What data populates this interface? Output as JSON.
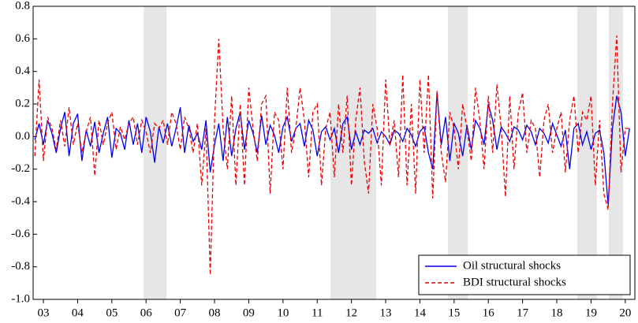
{
  "chart_data": {
    "type": "line",
    "x": [
      2003.25,
      2003.375,
      2003.5,
      2003.625,
      2003.75,
      2003.875,
      2004,
      2004.125,
      2004.25,
      2004.375,
      2004.5,
      2004.625,
      2004.75,
      2004.875,
      2005,
      2005.125,
      2005.25,
      2005.375,
      2005.5,
      2005.625,
      2005.75,
      2005.875,
      2006,
      2006.125,
      2006.25,
      2006.375,
      2006.5,
      2006.625,
      2006.75,
      2006.875,
      2007,
      2007.125,
      2007.25,
      2007.375,
      2007.5,
      2007.625,
      2007.75,
      2007.875,
      2008,
      2008.125,
      2008.25,
      2008.375,
      2008.5,
      2008.625,
      2008.75,
      2008.875,
      2009,
      2009.125,
      2009.25,
      2009.375,
      2009.5,
      2009.625,
      2009.75,
      2009.875,
      2010,
      2010.125,
      2010.25,
      2010.375,
      2010.5,
      2010.625,
      2010.75,
      2010.875,
      2011,
      2011.125,
      2011.25,
      2011.375,
      2011.5,
      2011.625,
      2011.75,
      2011.875,
      2012,
      2012.125,
      2012.25,
      2012.375,
      2012.5,
      2012.625,
      2012.75,
      2012.875,
      2013,
      2013.125,
      2013.25,
      2013.375,
      2013.5,
      2013.625,
      2013.75,
      2013.875,
      2014,
      2014.125,
      2014.25,
      2014.375,
      2014.5,
      2014.625,
      2014.75,
      2014.875,
      2015,
      2015.125,
      2015.25,
      2015.375,
      2015.5,
      2015.625,
      2015.75,
      2015.875,
      2016,
      2016.125,
      2016.25,
      2016.375,
      2016.5,
      2016.625,
      2016.75,
      2016.875,
      2017,
      2017.125,
      2017.25,
      2017.375,
      2017.5,
      2017.625,
      2017.75,
      2017.875,
      2018,
      2018.125,
      2018.25,
      2018.375,
      2018.5,
      2018.625,
      2018.75,
      2018.875,
      2019,
      2019.125,
      2019.25,
      2019.375,
      2019.5,
      2019.625,
      2019.75,
      2019.875,
      2020,
      2020.125,
      2020.25,
      2020.375,
      2020.5,
      2020.625
    ],
    "series": [
      {
        "name": "Oil structural shocks",
        "color": "#0000ee",
        "dash": false,
        "values": [
          -0.02,
          0.08,
          -0.05,
          0.1,
          0.02,
          -0.1,
          0.05,
          0.15,
          -0.12,
          0.08,
          0.14,
          -0.15,
          0.04,
          -0.06,
          0.09,
          -0.1,
          0.02,
          0.12,
          -0.13,
          0.05,
          0.02,
          -0.08,
          0.1,
          -0.05,
          0.08,
          -0.1,
          0.12,
          0.03,
          -0.16,
          0.06,
          -0.04,
          0.08,
          -0.06,
          0.05,
          0.18,
          -0.1,
          0.07,
          -0.03,
          0.02,
          -0.08,
          0.1,
          -0.22,
          -0.05,
          0.08,
          -0.15,
          0.12,
          -0.12,
          0.05,
          0.15,
          -0.08,
          0.1,
          0.02,
          -0.1,
          0.13,
          -0.05,
          0.07,
          0.01,
          -0.1,
          0.06,
          0.12,
          -0.03,
          0.05,
          0.08,
          -0.06,
          0.1,
          0.04,
          -0.12,
          0.03,
          0.06,
          -0.02,
          0.05,
          -0.1,
          0.08,
          0.12,
          -0.08,
          0.03,
          -0.05,
          0.04,
          0.02,
          0.05,
          -0.04,
          0.03,
          0.0,
          -0.05,
          0.04,
          0.02,
          -0.03,
          0.05,
          0.01,
          -0.06,
          0.03,
          0.06,
          -0.1,
          -0.2,
          0.27,
          -0.05,
          0.12,
          -0.15,
          0.08,
          0.02,
          -0.12,
          0.07,
          -0.08,
          0.1,
          0.05,
          -0.05,
          0.2,
          0.1,
          -0.08,
          0.06,
          0.02,
          -0.03,
          0.06,
          0.04,
          -0.02,
          0.07,
          0.03,
          -0.05,
          0.05,
          0.02,
          -0.04,
          0.08,
          0.01,
          -0.06,
          0.04,
          -0.2,
          0.05,
          0.08,
          -0.05,
          0.03,
          -0.08,
          0.02,
          0.04,
          -0.1,
          -0.42,
          0.05,
          0.25,
          0.15,
          -0.12,
          0.05
        ]
      },
      {
        "name": "BDI structural shocks",
        "color": "#ee0000",
        "dash": true,
        "values": [
          -0.12,
          0.35,
          -0.15,
          0.12,
          0.05,
          -0.08,
          0.1,
          -0.06,
          0.18,
          -0.05,
          0.08,
          -0.1,
          0.03,
          0.12,
          -0.24,
          0.1,
          -0.05,
          0.08,
          0.15,
          -0.08,
          0.06,
          -0.02,
          0.08,
          0.12,
          -0.05,
          0.1,
          0.03,
          -0.1,
          0.08,
          0.05,
          0.1,
          -0.05,
          0.15,
          0.08,
          -0.08,
          0.12,
          0.05,
          -0.1,
          0.08,
          -0.3,
          0.05,
          -0.85,
          0.1,
          0.6,
          0.05,
          -0.2,
          0.25,
          -0.3,
          0.2,
          -0.3,
          0.3,
          0.05,
          -0.15,
          0.2,
          0.25,
          -0.35,
          0.15,
          0.1,
          -0.2,
          0.3,
          -0.1,
          0.05,
          0.3,
          0.1,
          -0.25,
          0.15,
          0.2,
          -0.3,
          0.05,
          0.15,
          -0.25,
          0.2,
          -0.1,
          0.25,
          -0.3,
          0.1,
          0.3,
          -0.15,
          -0.35,
          0.2,
          0.05,
          -0.3,
          0.35,
          -0.05,
          0.1,
          -0.25,
          0.38,
          -0.3,
          0.2,
          -0.35,
          0.35,
          -0.1,
          0.38,
          -0.38,
          0.28,
          -0.1,
          -0.28,
          0.15,
          0.05,
          -0.2,
          0.2,
          0.05,
          -0.15,
          0.3,
          0.1,
          -0.2,
          0.25,
          -0.1,
          0.32,
          0.05,
          -0.37,
          0.25,
          -0.2,
          0.15,
          0.27,
          -0.1,
          0.1,
          0.05,
          -0.25,
          0.1,
          0.2,
          -0.1,
          0.05,
          0.15,
          -0.22,
          0.1,
          0.25,
          -0.1,
          0.15,
          0.1,
          0.25,
          -0.3,
          0.1,
          -0.35,
          -0.45,
          0.2,
          0.62,
          -0.22,
          0.05,
          0.05
        ]
      }
    ],
    "shaded_periods": [
      [
        2006.43,
        2007.1
      ],
      [
        2011.89,
        2013.22
      ],
      [
        2015.32,
        2015.9
      ],
      [
        2019.1,
        2019.67
      ],
      [
        2020.02,
        2020.43
      ]
    ],
    "shade_color": "#e6e6e6",
    "xlim": [
      2003.2,
      2020.78
    ],
    "xticks": [
      {
        "value": 2003.5,
        "label": "03"
      },
      {
        "value": 2004.5,
        "label": "04"
      },
      {
        "value": 2005.5,
        "label": "05"
      },
      {
        "value": 2006.5,
        "label": "06"
      },
      {
        "value": 2007.5,
        "label": "07"
      },
      {
        "value": 2008.5,
        "label": "08"
      },
      {
        "value": 2009.5,
        "label": "09"
      },
      {
        "value": 2010.5,
        "label": "10"
      },
      {
        "value": 2011.5,
        "label": "11"
      },
      {
        "value": 2012.5,
        "label": "12"
      },
      {
        "value": 2013.5,
        "label": "13"
      },
      {
        "value": 2014.5,
        "label": "14"
      },
      {
        "value": 2015.5,
        "label": "15"
      },
      {
        "value": 2016.5,
        "label": "16"
      },
      {
        "value": 2017.5,
        "label": "17"
      },
      {
        "value": 2018.5,
        "label": "18"
      },
      {
        "value": 2019.5,
        "label": "19"
      },
      {
        "value": 2020.5,
        "label": "20"
      }
    ],
    "ylim": [
      -1.0,
      0.8
    ],
    "yticks": [
      {
        "value": -1.0,
        "label": "-1.0"
      },
      -0.8,
      -0.6,
      -0.4,
      -0.2,
      {
        "value": 0.0,
        "label": "0.0"
      },
      0.2,
      0.4,
      0.6,
      0.8
    ],
    "legend": "lower right"
  }
}
